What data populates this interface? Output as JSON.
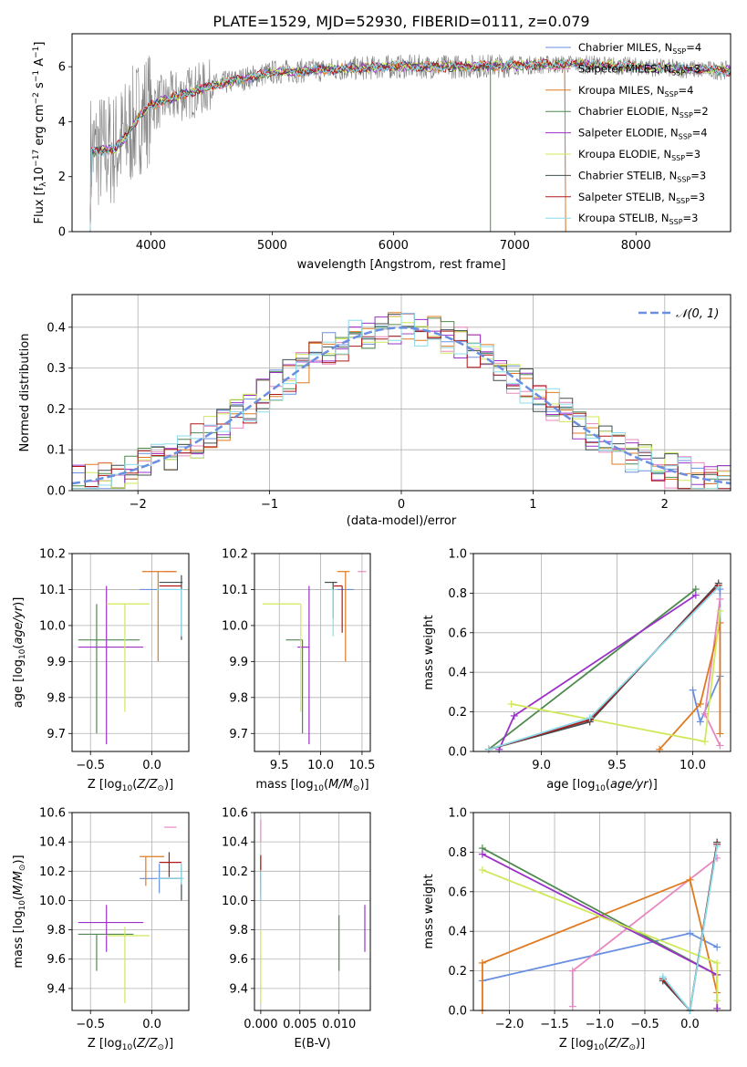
{
  "figure_title": "PLATE=1529, MJD=52930, FIBERID=0111, z=0.079",
  "colors": {
    "Chabrier MILES": "#6a8fe0",
    "Salpeter MILES": "#e887c0",
    "Kroupa MILES": "#e07a20",
    "Chabrier ELODIE": "#4f8a4f",
    "Salpeter ELODIE": "#9b30c8",
    "Kroupa ELODIE": "#cfe85a",
    "Chabrier STELIB": "#3f4f4f",
    "Salpeter STELIB": "#b01818",
    "Kroupa STELIB": "#8adcec",
    "data": "#808080"
  },
  "chart_data": [
    {
      "id": "spectrum",
      "type": "line",
      "title": "PLATE=1529, MJD=52930, FIBERID=0111, z=0.079",
      "xlabel": "wavelength [Angstrom, rest frame]",
      "ylabel": "Flux [f_λ 10^-17 erg cm^-2 s^-1 A^-1]",
      "xlim": [
        3350,
        8780
      ],
      "ylim": [
        0,
        7.2
      ],
      "xticks": [
        4000,
        5000,
        6000,
        7000,
        8000
      ],
      "yticks": [
        0,
        2,
        4,
        6
      ],
      "grid": false,
      "legend_position": "upper-right",
      "legend": [
        {
          "label": "Chabrier MILES, N",
          "sub": "SSP",
          "n": "=4"
        },
        {
          "label": "Salpeter MILES, N",
          "sub": "SSP",
          "n": "=3"
        },
        {
          "label": "Kroupa MILES, N",
          "sub": "SSP",
          "n": "=4"
        },
        {
          "label": "Chabrier ELODIE, N",
          "sub": "SSP",
          "n": "=2"
        },
        {
          "label": "Salpeter ELODIE, N",
          "sub": "SSP",
          "n": "=4"
        },
        {
          "label": "Kroupa ELODIE, N",
          "sub": "SSP",
          "n": "=3"
        },
        {
          "label": "Chabrier STELIB, N",
          "sub": "SSP",
          "n": "=3"
        },
        {
          "label": "Salpeter STELIB, N",
          "sub": "SSP",
          "n": "=3"
        },
        {
          "label": "Kroupa STELIB, N",
          "sub": "SSP",
          "n": "=3"
        }
      ],
      "continuum_model": [
        [
          3500,
          2.9
        ],
        [
          3700,
          3.0
        ],
        [
          3800,
          3.5
        ],
        [
          3900,
          4.2
        ],
        [
          4000,
          4.6
        ],
        [
          4200,
          4.9
        ],
        [
          4500,
          5.3
        ],
        [
          4800,
          5.6
        ],
        [
          5000,
          5.8
        ],
        [
          5500,
          5.9
        ],
        [
          6000,
          6.0
        ],
        [
          6500,
          6.0
        ],
        [
          7000,
          6.05
        ],
        [
          7500,
          6.1
        ],
        [
          8000,
          6.0
        ],
        [
          8500,
          5.9
        ],
        [
          8780,
          5.85
        ]
      ]
    },
    {
      "id": "residuals",
      "type": "histogram",
      "xlabel": "(data-model)/error",
      "ylabel": "Normed distribution",
      "xlim": [
        -2.5,
        2.5
      ],
      "ylim": [
        0,
        0.48
      ],
      "xticks": [
        -2,
        -1,
        0,
        1,
        2
      ],
      "yticks": [
        0.0,
        0.1,
        0.2,
        0.3,
        0.4
      ],
      "grid": true,
      "reference_curve": {
        "label": "N(0,1)",
        "sigma": 1,
        "style": "dashed"
      },
      "legend_position": "upper-right"
    },
    {
      "id": "age_vs_Z",
      "type": "scatter",
      "xlabel": "Z [log10(Z/Z⊙)]",
      "ylabel": "age [log10(age/yr)]",
      "xlim": [
        -0.65,
        0.3
      ],
      "ylim": [
        9.65,
        10.2
      ],
      "xticks": [
        -0.5,
        0.0
      ],
      "yticks": [
        9.7,
        9.8,
        9.9,
        10.0,
        10.1,
        10.2
      ],
      "points": [
        {
          "model": "Chabrier MILES",
          "x": 0.06,
          "y": 10.1,
          "xerr": [
            0.16,
            0.14
          ],
          "yerr": [
            0.0,
            0.0
          ]
        },
        {
          "model": "Salpeter MILES",
          "x": 0.15,
          "y": 10.15,
          "xerr": [
            0.05,
            0.05
          ],
          "yerr": [
            0.0,
            0.0
          ]
        },
        {
          "model": "Kroupa MILES",
          "x": 0.05,
          "y": 10.15,
          "xerr": [
            0.13,
            0.15
          ],
          "yerr": [
            0.25,
            0.0
          ]
        },
        {
          "model": "Chabrier ELODIE",
          "x": -0.45,
          "y": 9.96,
          "xerr": [
            0.15,
            0.35
          ],
          "yerr": [
            0.26,
            0.1
          ]
        },
        {
          "model": "Salpeter ELODIE",
          "x": -0.37,
          "y": 9.94,
          "xerr": [
            0.23,
            0.3
          ],
          "yerr": [
            0.27,
            0.17
          ]
        },
        {
          "model": "Kroupa ELODIE",
          "x": -0.22,
          "y": 10.06,
          "xerr": [
            0.15,
            0.2
          ],
          "yerr": [
            0.3,
            0.0
          ]
        },
        {
          "model": "Chabrier STELIB",
          "x": 0.24,
          "y": 10.12,
          "xerr": [
            0.18,
            0.01
          ],
          "yerr": [
            0.16,
            0.02
          ]
        },
        {
          "model": "Salpeter STELIB",
          "x": 0.14,
          "y": 10.11,
          "xerr": [
            0.08,
            0.1
          ],
          "yerr": [
            0.0,
            0.0
          ]
        },
        {
          "model": "Kroupa STELIB",
          "x": 0.24,
          "y": 10.1,
          "xerr": [
            0.2,
            0.02
          ],
          "yerr": [
            0.13,
            0.0
          ]
        }
      ]
    },
    {
      "id": "age_vs_mass",
      "type": "scatter",
      "xlabel": "mass [log10(M/M⊙)]",
      "ylabel": "",
      "xlim": [
        9.2,
        10.6
      ],
      "ylim": [
        9.65,
        10.2
      ],
      "xticks": [
        9.5,
        10.0,
        10.5
      ],
      "yticks": [
        9.7,
        9.8,
        9.9,
        10.0,
        10.1,
        10.2
      ],
      "points": [
        {
          "model": "Chabrier MILES",
          "x": 10.3,
          "y": 10.1,
          "xerr": [
            0.1,
            0.1
          ],
          "yerr": [
            0.0,
            0.0
          ]
        },
        {
          "model": "Salpeter MILES",
          "x": 10.5,
          "y": 10.15,
          "xerr": [
            0.05,
            0.05
          ],
          "yerr": [
            0.0,
            0.0
          ]
        },
        {
          "model": "Kroupa MILES",
          "x": 10.3,
          "y": 10.15,
          "xerr": [
            0.1,
            0.05
          ],
          "yerr": [
            0.25,
            0.0
          ]
        },
        {
          "model": "Chabrier ELODIE",
          "x": 9.78,
          "y": 9.96,
          "xerr": [
            0.2,
            0.0
          ],
          "yerr": [
            0.26,
            0.0
          ]
        },
        {
          "model": "Salpeter ELODIE",
          "x": 9.86,
          "y": 9.94,
          "xerr": [
            0.14,
            0.0
          ],
          "yerr": [
            0.27,
            0.17
          ]
        },
        {
          "model": "Kroupa ELODIE",
          "x": 9.76,
          "y": 10.06,
          "xerr": [
            0.46,
            0.0
          ],
          "yerr": [
            0.3,
            0.0
          ]
        },
        {
          "model": "Chabrier STELIB",
          "x": 10.15,
          "y": 10.12,
          "xerr": [
            0.1,
            0.05
          ],
          "yerr": [
            0.1,
            0.0
          ]
        },
        {
          "model": "Salpeter STELIB",
          "x": 10.26,
          "y": 10.11,
          "xerr": [
            0.1,
            0.0
          ],
          "yerr": [
            0.13,
            0.0
          ]
        },
        {
          "model": "Kroupa STELIB",
          "x": 10.15,
          "y": 10.1,
          "xerr": [
            0.04,
            0.0
          ],
          "yerr": [
            0.13,
            0.0
          ]
        }
      ]
    },
    {
      "id": "mass_weight_vs_age",
      "type": "line",
      "xlabel": "age [log10(age/yr)]",
      "ylabel": "mass weight",
      "xlim": [
        8.55,
        10.25
      ],
      "ylim": [
        0,
        1
      ],
      "xticks": [
        9.0,
        9.5,
        10.0
      ],
      "yticks": [
        0.0,
        0.2,
        0.4,
        0.6,
        0.8,
        1.0
      ],
      "grid": true,
      "series": [
        {
          "model": "Chabrier MILES",
          "x": [
            10.0,
            10.05,
            10.18,
            10.18
          ],
          "y": [
            0.31,
            0.15,
            0.38,
            0.82
          ]
        },
        {
          "model": "Salpeter MILES",
          "x": [
            10.18,
            10.08,
            10.18
          ],
          "y": [
            0.03,
            0.19,
            0.77
          ]
        },
        {
          "model": "Kroupa MILES",
          "x": [
            9.78,
            10.05,
            10.18,
            10.18
          ],
          "y": [
            0.01,
            0.24,
            0.65,
            0.09
          ]
        },
        {
          "model": "Chabrier ELODIE",
          "x": [
            8.65,
            10.02
          ],
          "y": [
            0.01,
            0.82
          ]
        },
        {
          "model": "Salpeter ELODIE",
          "x": [
            8.72,
            8.82,
            10.02
          ],
          "y": [
            0.01,
            0.18,
            0.79
          ]
        },
        {
          "model": "Kroupa ELODIE",
          "x": [
            8.8,
            10.08,
            10.18
          ],
          "y": [
            0.24,
            0.05,
            0.71
          ]
        },
        {
          "model": "Chabrier STELIB",
          "x": [
            8.65,
            9.32,
            10.17
          ],
          "y": [
            0.01,
            0.15,
            0.85
          ]
        },
        {
          "model": "Salpeter STELIB",
          "x": [
            8.65,
            9.32,
            10.17
          ],
          "y": [
            0.01,
            0.16,
            0.84
          ]
        },
        {
          "model": "Kroupa STELIB",
          "x": [
            8.65,
            9.32,
            10.17
          ],
          "y": [
            0.01,
            0.17,
            0.83
          ]
        }
      ]
    },
    {
      "id": "mass_vs_Z",
      "type": "scatter",
      "xlabel": "Z [log10(Z/Z⊙)]",
      "ylabel": "mass [log10(M/M⊙)]",
      "xlim": [
        -0.65,
        0.3
      ],
      "ylim": [
        9.25,
        10.6
      ],
      "xticks": [
        -0.5,
        0.0
      ],
      "yticks": [
        9.4,
        9.6,
        9.8,
        10.0,
        10.2,
        10.4,
        10.6
      ],
      "points": [
        {
          "model": "Chabrier MILES",
          "x": 0.06,
          "y": 10.15,
          "xerr": [
            0.16,
            0.14
          ],
          "yerr": [
            0.1,
            0.1
          ]
        },
        {
          "model": "Salpeter MILES",
          "x": 0.15,
          "y": 10.5,
          "xerr": [
            0.05,
            0.05
          ],
          "yerr": [
            0.0,
            0.0
          ]
        },
        {
          "model": "Kroupa MILES",
          "x": -0.05,
          "y": 10.3,
          "xerr": [
            0.05,
            0.15
          ],
          "yerr": [
            0.2,
            0.0
          ]
        },
        {
          "model": "Chabrier ELODIE",
          "x": -0.45,
          "y": 9.77,
          "xerr": [
            0.15,
            0.3
          ],
          "yerr": [
            0.25,
            0.0
          ]
        },
        {
          "model": "Salpeter ELODIE",
          "x": -0.37,
          "y": 9.85,
          "xerr": [
            0.23,
            0.3
          ],
          "yerr": [
            0.2,
            0.12
          ]
        },
        {
          "model": "Kroupa ELODIE",
          "x": -0.22,
          "y": 9.76,
          "xerr": [
            0.15,
            0.2
          ],
          "yerr": [
            0.46,
            0.06
          ]
        },
        {
          "model": "Chabrier STELIB",
          "x": 0.24,
          "y": 10.15,
          "xerr": [
            0.18,
            0.01
          ],
          "yerr": [
            0.15,
            0.1
          ]
        },
        {
          "model": "Salpeter STELIB",
          "x": 0.14,
          "y": 10.26,
          "xerr": [
            0.08,
            0.1
          ],
          "yerr": [
            0.1,
            0.07
          ]
        },
        {
          "model": "Kroupa STELIB",
          "x": 0.24,
          "y": 10.15,
          "xerr": [
            0.2,
            0.02
          ],
          "yerr": [
            0.04,
            0.1
          ]
        }
      ]
    },
    {
      "id": "mass_vs_EBV",
      "type": "scatter",
      "xlabel": "E(B-V)",
      "ylabel": "",
      "xlim": [
        -0.0008,
        0.014
      ],
      "ylim": [
        9.25,
        10.6
      ],
      "xticks": [
        0.0,
        0.005,
        0.01
      ],
      "yticks": [
        9.4,
        9.6,
        9.8,
        10.0,
        10.2,
        10.4,
        10.6
      ],
      "points": [
        {
          "model": "Chabrier MILES",
          "x": 0.0,
          "y": 10.15,
          "xerr": [
            0,
            0
          ],
          "yerr": [
            0.1,
            0.1
          ]
        },
        {
          "model": "Salpeter MILES",
          "x": 0.0,
          "y": 10.5,
          "xerr": [
            0,
            0
          ],
          "yerr": [
            0.1,
            0.05
          ]
        },
        {
          "model": "Kroupa MILES",
          "x": 0.0,
          "y": 10.3,
          "xerr": [
            0,
            0
          ],
          "yerr": [
            0.2,
            0.0
          ]
        },
        {
          "model": "Chabrier ELODIE",
          "x": 0.01,
          "y": 9.77,
          "xerr": [
            0,
            0
          ],
          "yerr": [
            0.25,
            0.13
          ]
        },
        {
          "model": "Salpeter ELODIE",
          "x": 0.0133,
          "y": 9.85,
          "xerr": [
            0,
            0
          ],
          "yerr": [
            0.2,
            0.12
          ]
        },
        {
          "model": "Kroupa ELODIE",
          "x": 0.0,
          "y": 9.6,
          "xerr": [
            0,
            0
          ],
          "yerr": [
            0.3,
            0.2
          ]
        },
        {
          "model": "Chabrier STELIB",
          "x": 0.0,
          "y": 10.15,
          "xerr": [
            0,
            0
          ],
          "yerr": [
            0.15,
            0.05
          ]
        },
        {
          "model": "Salpeter STELIB",
          "x": 0.0,
          "y": 10.26,
          "xerr": [
            0,
            0
          ],
          "yerr": [
            0.05,
            0.05
          ]
        },
        {
          "model": "Kroupa STELIB",
          "x": 0.0,
          "y": 10.1,
          "xerr": [
            0,
            0
          ],
          "yerr": [
            0.1,
            0.1
          ]
        }
      ]
    },
    {
      "id": "mass_weight_vs_Z",
      "type": "line",
      "xlabel": "Z [log10(Z/Z⊙)]",
      "ylabel": "mass weight",
      "xlim": [
        -2.4,
        0.45
      ],
      "ylim": [
        0,
        1
      ],
      "xticks": [
        -2.0,
        -1.5,
        -1.0,
        -0.5,
        0.0
      ],
      "yticks": [
        0.0,
        0.2,
        0.4,
        0.6,
        0.8,
        1.0
      ],
      "grid": true,
      "series": [
        {
          "model": "Chabrier MILES",
          "x": [
            -2.3,
            0.0,
            0.3
          ],
          "y": [
            0.15,
            0.39,
            0.32
          ]
        },
        {
          "model": "Salpeter MILES",
          "x": [
            -1.3,
            -1.3,
            0.3
          ],
          "y": [
            0.02,
            0.2,
            0.77
          ]
        },
        {
          "model": "Kroupa MILES",
          "x": [
            -2.3,
            -2.3,
            0.0,
            0.3
          ],
          "y": [
            0.0,
            0.24,
            0.66,
            0.09
          ]
        },
        {
          "model": "Chabrier ELODIE",
          "x": [
            -2.3,
            0.3
          ],
          "y": [
            0.82,
            0.18
          ]
        },
        {
          "model": "Salpeter ELODIE",
          "x": [
            -2.3,
            0.3,
            0.3
          ],
          "y": [
            0.79,
            0.18,
            0.01
          ]
        },
        {
          "model": "Kroupa ELODIE",
          "x": [
            -2.3,
            0.3,
            0.3
          ],
          "y": [
            0.71,
            0.24,
            0.05
          ]
        },
        {
          "model": "Chabrier STELIB",
          "x": [
            -0.3,
            0.0,
            0.3
          ],
          "y": [
            0.15,
            0.0,
            0.85
          ]
        },
        {
          "model": "Salpeter STELIB",
          "x": [
            -0.3,
            0.0,
            0.3
          ],
          "y": [
            0.16,
            0.0,
            0.84
          ]
        },
        {
          "model": "Kroupa STELIB",
          "x": [
            -0.3,
            0.0,
            0.3
          ],
          "y": [
            0.17,
            0.0,
            0.83
          ]
        }
      ]
    }
  ]
}
